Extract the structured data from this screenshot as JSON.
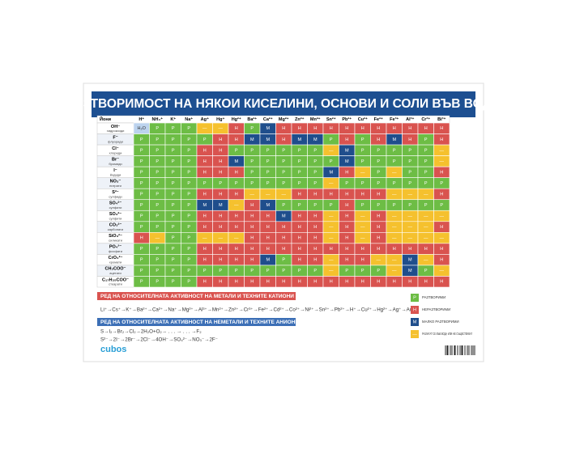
{
  "header": {
    "title": "РАЗТВОРИМОСТ НА НЯКОИ КИСЕЛИНИ, ОСНОВИ И СОЛИ ВЪВ ВОДА"
  },
  "table": {
    "corner": "Йони",
    "columns": [
      "H⁺",
      "NH₄⁺",
      "K⁺",
      "Na⁺",
      "Ag⁺",
      "Hg⁺",
      "Hg²⁺",
      "Ba²⁺",
      "Ca²⁺",
      "Mg²⁺",
      "Zn²⁺",
      "Mn²⁺",
      "Sn²⁺",
      "Pb²⁺",
      "Cu²⁺",
      "Fe²⁺",
      "Fe³⁺",
      "Al³⁺",
      "Cr³⁺",
      "Bi³⁺"
    ],
    "row_labels": [
      {
        "ion": "OH⁻",
        "name": "хидроксиди"
      },
      {
        "ion": "F⁻",
        "name": "флуориди"
      },
      {
        "ion": "Cl⁻",
        "name": "хлориди"
      },
      {
        "ion": "Br⁻",
        "name": "бромиди"
      },
      {
        "ion": "I⁻",
        "name": "йодиди"
      },
      {
        "ion": "NO₃⁻",
        "name": "нитрати"
      },
      {
        "ion": "S²⁻",
        "name": "сулфиди"
      },
      {
        "ion": "SO₄²⁻",
        "name": "сулфати"
      },
      {
        "ion": "SO₃²⁻",
        "name": "сулфити"
      },
      {
        "ion": "CO₃²⁻",
        "name": "карбонати"
      },
      {
        "ion": "SiO₃²⁻",
        "name": "силикати"
      },
      {
        "ion": "PO₄³⁻",
        "name": "фосфати"
      },
      {
        "ion": "CrO₄²⁻",
        "name": "хромати"
      },
      {
        "ion": "CH₃COO⁻",
        "name": "ацетати"
      },
      {
        "ion": "C₁₇H₃₅COO⁻",
        "name": "стеарати"
      }
    ],
    "rows": [
      [
        "H₂O",
        "Р",
        "Р",
        "Р",
        "—",
        "—",
        "Н",
        "Р",
        "М",
        "Н",
        "Н",
        "Н",
        "Н",
        "Н",
        "Н",
        "Н",
        "Н",
        "Н",
        "Н",
        "Н"
      ],
      [
        "Р",
        "Р",
        "Р",
        "Р",
        "Р",
        "Н",
        "Н",
        "М",
        "М",
        "Н",
        "М",
        "М",
        "Р",
        "Н",
        "Р",
        "Н",
        "М",
        "Н",
        "Р",
        "Н"
      ],
      [
        "Р",
        "Р",
        "Р",
        "Р",
        "Н",
        "Н",
        "Р",
        "Р",
        "Р",
        "Р",
        "Р",
        "Р",
        "—",
        "М",
        "Р",
        "Р",
        "Р",
        "Р",
        "Р",
        "—"
      ],
      [
        "Р",
        "Р",
        "Р",
        "Р",
        "Н",
        "Н",
        "М",
        "Р",
        "Р",
        "Р",
        "Р",
        "Р",
        "Р",
        "М",
        "Р",
        "Р",
        "Р",
        "Р",
        "Р",
        "—"
      ],
      [
        "Р",
        "Р",
        "Р",
        "Р",
        "Н",
        "Н",
        "Н",
        "Р",
        "Р",
        "Р",
        "Р",
        "Р",
        "М",
        "Н",
        "—",
        "Р",
        "—",
        "Р",
        "Р",
        "Н"
      ],
      [
        "Р",
        "Р",
        "Р",
        "Р",
        "Р",
        "Р",
        "Р",
        "Р",
        "Р",
        "Р",
        "Р",
        "Р",
        "—",
        "Р",
        "Р",
        "Р",
        "Р",
        "Р",
        "Р",
        "Р"
      ],
      [
        "Р",
        "Р",
        "Р",
        "Р",
        "Н",
        "Н",
        "Н",
        "—",
        "—",
        "—",
        "Н",
        "Н",
        "Н",
        "Н",
        "Н",
        "Н",
        "—",
        "—",
        "—",
        "Н"
      ],
      [
        "Р",
        "Р",
        "Р",
        "Р",
        "М",
        "М",
        "—",
        "Н",
        "М",
        "Р",
        "Р",
        "Р",
        "Р",
        "Н",
        "Р",
        "Р",
        "Р",
        "Р",
        "Р",
        "Р"
      ],
      [
        "Р",
        "Р",
        "Р",
        "Р",
        "Н",
        "Н",
        "Н",
        "Н",
        "Н",
        "М",
        "Н",
        "Н",
        "—",
        "Н",
        "—",
        "Н",
        "—",
        "—",
        "—",
        "—"
      ],
      [
        "Р",
        "Р",
        "Р",
        "Р",
        "Н",
        "Н",
        "Н",
        "Н",
        "Н",
        "Н",
        "Н",
        "Н",
        "—",
        "Н",
        "—",
        "Н",
        "—",
        "—",
        "—",
        "Н"
      ],
      [
        "Н",
        "—",
        "Р",
        "Р",
        "—",
        "—",
        "—",
        "Н",
        "Н",
        "Н",
        "Н",
        "Н",
        "—",
        "Н",
        "—",
        "Н",
        "—",
        "—",
        "—",
        "—"
      ],
      [
        "Р",
        "Р",
        "Р",
        "Р",
        "Н",
        "Н",
        "Н",
        "Н",
        "Н",
        "Н",
        "Н",
        "Н",
        "Н",
        "Н",
        "Н",
        "Н",
        "Н",
        "Н",
        "Н",
        "Н"
      ],
      [
        "Р",
        "Р",
        "Р",
        "Р",
        "Н",
        "Н",
        "Н",
        "Н",
        "М",
        "Р",
        "Н",
        "Н",
        "—",
        "Н",
        "Н",
        "—",
        "—",
        "М",
        "—",
        "Н"
      ],
      [
        "Р",
        "Р",
        "Р",
        "Р",
        "Р",
        "Р",
        "Р",
        "Р",
        "Р",
        "Р",
        "Р",
        "Р",
        "—",
        "Р",
        "Р",
        "Р",
        "—",
        "М",
        "Р",
        "—"
      ],
      [
        "Р",
        "Р",
        "Р",
        "Р",
        "Н",
        "Н",
        "Н",
        "Н",
        "Н",
        "Н",
        "Н",
        "Н",
        "Н",
        "Н",
        "Н",
        "Н",
        "Н",
        "Н",
        "Н",
        "Н"
      ]
    ]
  },
  "legend": [
    {
      "code": "Р",
      "label": "РАЗТВОРИМИ",
      "color": "#6dbd45"
    },
    {
      "code": "Н",
      "label": "НЕРАЗТВОРИМИ",
      "color": "#d9534f"
    },
    {
      "code": "М",
      "label": "МАЛКО РАЗТВОРИМИ",
      "color": "#1f4e8c"
    },
    {
      "code": "—",
      "label": "РАЗЛАГАТ СЕ ВЪВ ВОДА ИЛИ НЕ СЪЩЕСТВУВАТ",
      "color": "#f5c12e"
    }
  ],
  "metals": {
    "heading": "РЕД НА ОТНОСИТЕЛНАТА АКТИВНОСТ НА МЕТАЛИ И ТЕХНИТЕ КАТИОНИ",
    "line": "Li⁺→Cs⁺→K⁺→Ba²⁺→Ca²⁺→Na⁺→Mg²⁺→Al³⁺→Mn²⁺→Zn²⁺→Cr³⁺→Fe²⁺→Cd²⁺→Co²⁺→Ni²⁺→Sn²⁺→Pb²⁺→H⁺→Cu²⁺→Hg²⁺→Ag⁺→Au³⁺"
  },
  "nonmetals": {
    "heading": "РЕД НА ОТНОСИТЕЛНАТА АКТИВНОСТ НА НЕМЕТАЛИ И ТЕХНИТЕ АНИОНИ",
    "lines": [
      "S→I₂→Br₂→Cl₂→2H₂O+O₂→ . . . → . . . →F₂",
      "S²⁻→2I⁻→2Br⁻→2Cl⁻→4OH⁻→SO₄²⁻→NO₃⁻→2F⁻"
    ]
  },
  "brand": "cubos"
}
